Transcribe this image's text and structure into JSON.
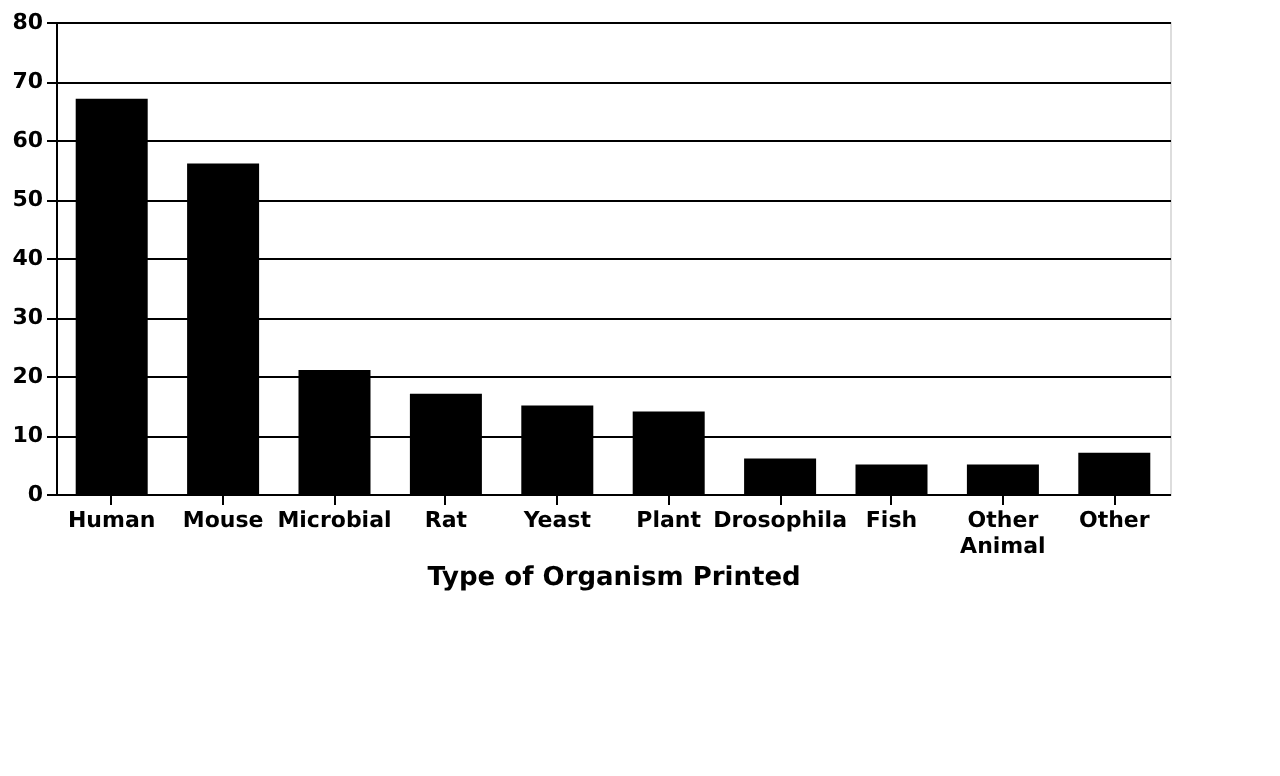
{
  "chart_data": {
    "type": "bar",
    "xlabel": "Type of Organism Printed",
    "categories": [
      "Human",
      "Mouse",
      "Microbial",
      "Rat",
      "Yeast",
      "Plant",
      "Drosophila",
      "Fish",
      "Other Animal",
      "Other"
    ],
    "values": [
      67,
      56,
      21,
      17,
      15,
      14,
      6,
      5,
      5,
      7
    ],
    "color": "#000000",
    "ylim": [
      0,
      80
    ],
    "yticks": [
      0,
      10,
      20,
      30,
      40,
      50,
      60,
      70,
      80
    ],
    "grid": "y"
  }
}
